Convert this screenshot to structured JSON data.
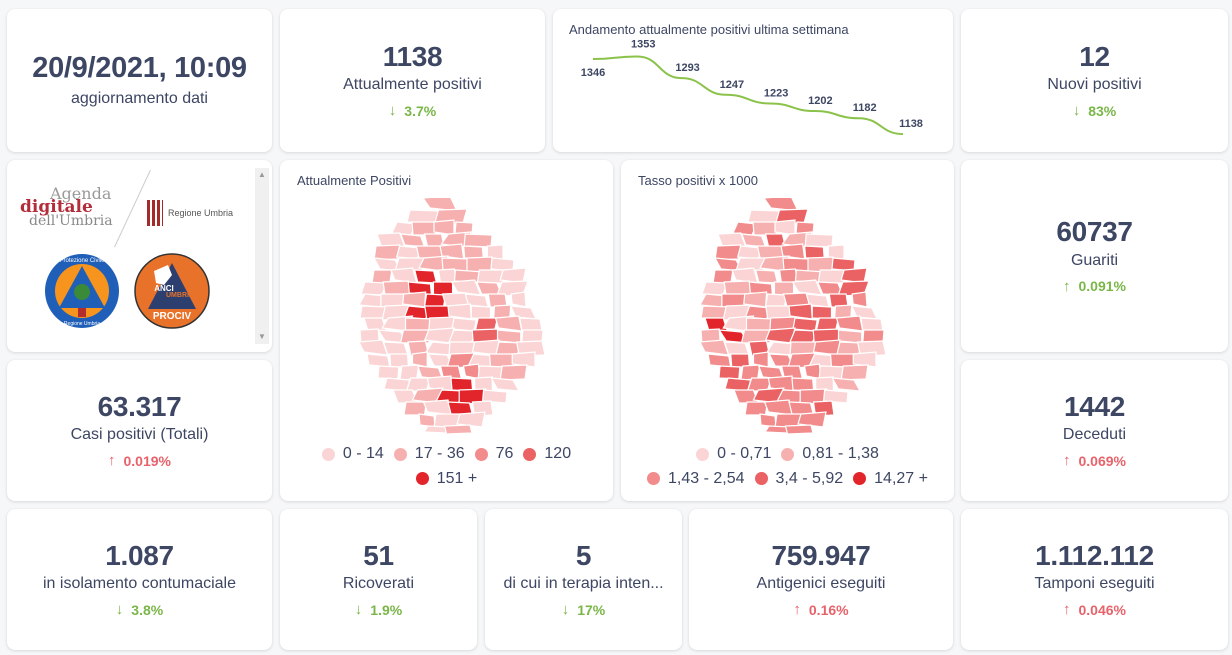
{
  "update": {
    "value": "20/9/2021, 10:09",
    "label": "aggiornamento dati"
  },
  "attualmente_positivi": {
    "value": "1138",
    "label": "Attualmente positivi",
    "delta": "3.7%",
    "direction": "down",
    "color": "#7ab648"
  },
  "trend": {
    "title": "Andamento attualmente positivi ultima settimana",
    "line_color": "#8bc34a"
  },
  "chart_data": {
    "type": "line",
    "title": "Andamento attualmente positivi ultima settimana",
    "x": [
      1,
      2,
      3,
      4,
      5,
      6,
      7,
      8
    ],
    "values": [
      1346,
      1353,
      1293,
      1247,
      1223,
      1202,
      1182,
      1138
    ],
    "labels": [
      "1346",
      "1353",
      "1293",
      "1247",
      "1223",
      "1202",
      "1182",
      "1138"
    ],
    "xlabel": "",
    "ylabel": "",
    "ylim": [
      1130,
      1360
    ],
    "grid": false
  },
  "nuovi_positivi": {
    "value": "12",
    "label": "Nuovi positivi",
    "delta": "83%",
    "direction": "down",
    "color": "#7ab648"
  },
  "logos": {
    "agenda_digitale": [
      "Agenda",
      "digitale",
      "dell'Umbria"
    ],
    "regione": "Regione Umbria",
    "protezione_civile": [
      "Protezione Civile",
      "Regione Umbria"
    ],
    "anci": [
      "ANCI",
      "UMBRIA",
      "PROCIV"
    ]
  },
  "map_positivi": {
    "title": "Attualmente Positivi",
    "legend": [
      {
        "label": "0 - 14",
        "color": "#fbd5d5"
      },
      {
        "label": "17 - 36",
        "color": "#f7b0b0"
      },
      {
        "label": "76",
        "color": "#f28b8b"
      },
      {
        "label": "120",
        "color": "#ea6264"
      },
      {
        "label": "151 +",
        "color": "#e2252b"
      }
    ]
  },
  "map_tasso": {
    "title": "Tasso positivi x 1000",
    "legend": [
      {
        "label": "0 - 0,71",
        "color": "#fbd5d5"
      },
      {
        "label": "0,81 - 1,38",
        "color": "#f7b0b0"
      },
      {
        "label": "1,43 - 2,54",
        "color": "#f28b8b"
      },
      {
        "label": "3,4 - 5,92",
        "color": "#ea6264"
      },
      {
        "label": "14,27 +",
        "color": "#e2252b"
      }
    ]
  },
  "guariti": {
    "value": "60737",
    "label": "Guariti",
    "delta": "0.091%",
    "direction": "up",
    "color": "#7ab648"
  },
  "casi_totali": {
    "value": "63.317",
    "label": "Casi positivi (Totali)",
    "delta": "0.019%",
    "direction": "up",
    "color": "#e8626a"
  },
  "deceduti": {
    "value": "1442",
    "label": "Deceduti",
    "delta": "0.069%",
    "direction": "up",
    "color": "#e8626a"
  },
  "isolamento": {
    "value": "1.087",
    "label": "in isolamento contumaciale",
    "delta": "3.8%",
    "direction": "down",
    "color": "#7ab648"
  },
  "ricoverati": {
    "value": "51",
    "label": "Ricoverati",
    "delta": "1.9%",
    "direction": "down",
    "color": "#7ab648"
  },
  "terapia_intensiva": {
    "value": "5",
    "label": "di cui in terapia inten...",
    "delta": "17%",
    "direction": "down",
    "color": "#7ab648"
  },
  "antigenici": {
    "value": "759.947",
    "label": "Antigenici eseguiti",
    "delta": "0.16%",
    "direction": "up",
    "color": "#e8626a"
  },
  "tamponi": {
    "value": "1.112.112",
    "label": "Tamponi eseguiti",
    "delta": "0.046%",
    "direction": "up",
    "color": "#e8626a"
  },
  "arrows": {
    "up": "↑",
    "down": "↓"
  }
}
